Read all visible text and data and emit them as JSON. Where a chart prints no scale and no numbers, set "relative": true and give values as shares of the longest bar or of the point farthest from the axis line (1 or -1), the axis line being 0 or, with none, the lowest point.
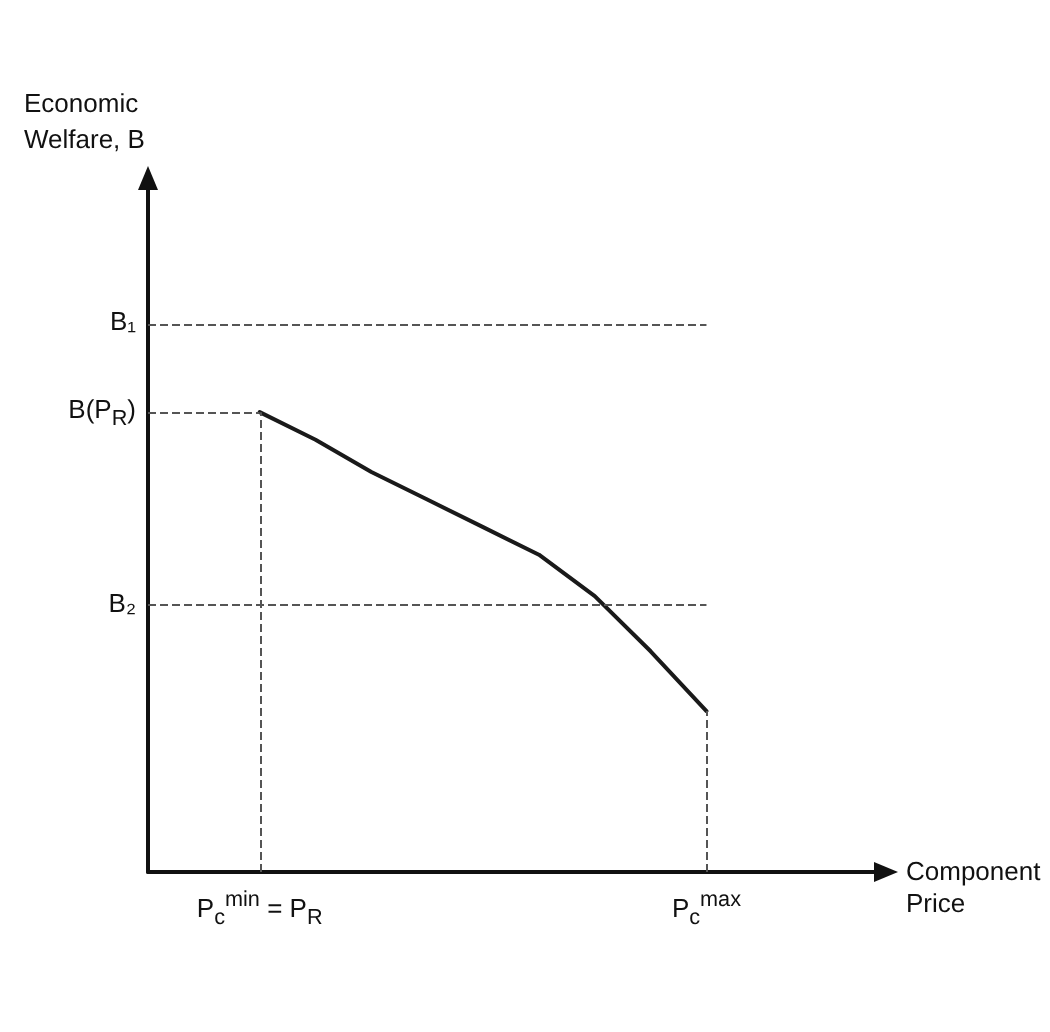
{
  "chart_data": {
    "type": "line",
    "xlabel": "Component Price",
    "annotations": [
      "Economic Welfare, B"
    ],
    "relative": true,
    "categories": [
      null,
      null,
      "P$_{c}$$^{min}$ = P$_{R}$",
      null,
      null,
      null,
      null,
      null,
      null,
      null,
      "P$_{c}$$^{max}$",
      null,
      null,
      null
    ],
    "series": [
      {
        "color": "#1a1a1a",
        "values": [
          null,
          null,
          1,
          0.94,
          0.87,
          0.81,
          0.75,
          0.69,
          0.6,
          0.48,
          0.35,
          null,
          null,
          null
        ]
      }
    ],
    "ref_lines": [
      {
        "axis": "y",
        "value": 1.19,
        "label": "B₁",
        "line_style": "dashed"
      },
      {
        "axis": "y",
        "value": 1,
        "label": "B(P$_{R}$)",
        "line_style": "dashed"
      },
      {
        "axis": "y",
        "value": 0.58,
        "label": "B₂",
        "line_style": "dashed"
      },
      {
        "axis": "x",
        "value": "P$_{c}$$^{min}$ = P$_{R}$",
        "line_style": "dashed"
      },
      {
        "axis": "x",
        "value": "P$_{c}$$^{max}$",
        "line_style": "dashed"
      }
    ],
    "grid": false,
    "marker": "none",
    "line_style": "solid"
  }
}
